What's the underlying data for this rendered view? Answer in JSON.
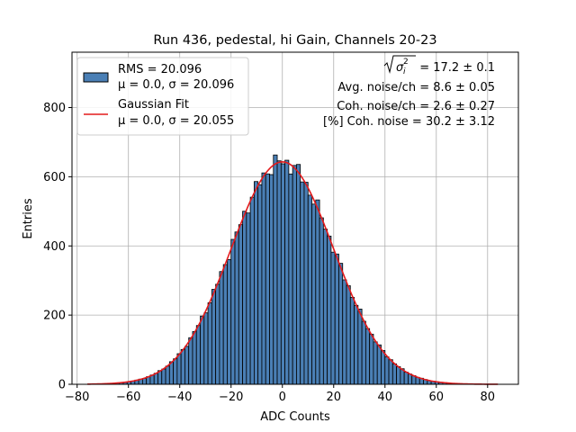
{
  "chart_data": {
    "type": "bar",
    "title": "Run 436, pedestal, hi Gain, Channels 20-23",
    "xlabel": "ADC Counts",
    "ylabel": "Entries",
    "xlim": [
      -82,
      92
    ],
    "ylim": [
      0,
      960
    ],
    "xticks": [
      -80,
      -60,
      -40,
      -20,
      0,
      20,
      40,
      60,
      80
    ],
    "yticks": [
      0,
      200,
      400,
      600,
      800
    ],
    "xtick_labels": [
      "−80",
      "−60",
      "−40",
      "−20",
      "0",
      "20",
      "40",
      "60",
      "80"
    ],
    "ytick_labels": [
      "0",
      "200",
      "400",
      "600",
      "800"
    ],
    "grid": true,
    "legend_position": "top-left",
    "bin_width": 1.5,
    "bin_start": -74,
    "bin_end": 84,
    "histogram": {
      "name": "RMS = 20.096",
      "sub": "μ = 0.0, σ = 20.096",
      "color": "#4a7fb5",
      "edge": "#000000",
      "mu": 0.0,
      "sigma": 20.096,
      "peak": 643
    },
    "fit": {
      "name": "Gaussian Fit",
      "sub": "μ = 0.0, σ = 20.055",
      "color": "#e31a1c",
      "mu": 0.0,
      "sigma": 20.055,
      "amplitude": 643,
      "x_range": [
        -76,
        84
      ]
    },
    "annotations": {
      "sigma_i_value": " = 17.2 ± 0.1",
      "avg_noise": "Avg. noise/ch = 8.6 ± 0.05",
      "coh_noise": "Coh. noise/ch = 2.6 ± 0.27",
      "coh_noise_pct": "[%] Coh. noise = 30.2 ± 3.12"
    }
  }
}
